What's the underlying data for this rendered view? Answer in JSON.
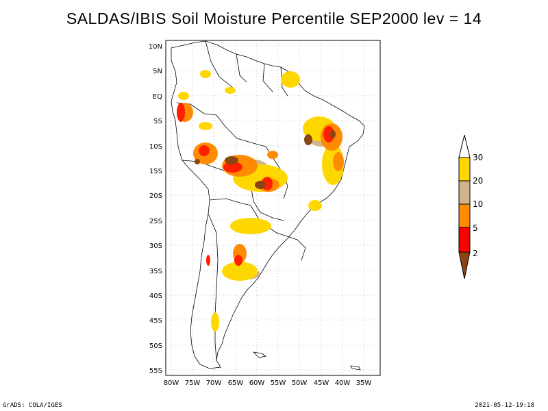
{
  "title": "SALDAS/IBIS Soil Moisture Percentile SEP2000 lev = 14",
  "footer": {
    "left": "GrADS: COLA/IGES",
    "right": "2021-05-12-19:18"
  },
  "map": {
    "lat_ticks": [
      "10N",
      "5N",
      "EQ",
      "5S",
      "10S",
      "15S",
      "20S",
      "25S",
      "30S",
      "35S",
      "40S",
      "45S",
      "50S",
      "55S"
    ],
    "lon_ticks": [
      "80W",
      "75W",
      "70W",
      "65W",
      "60W",
      "55W",
      "50W",
      "45W",
      "40W",
      "35W"
    ],
    "grid": "dotted",
    "lon_range": [
      -81,
      -32
    ],
    "lat_range": [
      -56,
      12
    ]
  },
  "colorbar": {
    "labels": [
      "2",
      "5",
      "10",
      "20",
      "30"
    ],
    "colors": [
      "#8B4513",
      "#ff0000",
      "#ff8c00",
      "#d2b48c",
      "#ffd700",
      "#ffffff"
    ]
  },
  "map_colors": {
    "land_fill": "#ffffff",
    "border": "#000000"
  }
}
